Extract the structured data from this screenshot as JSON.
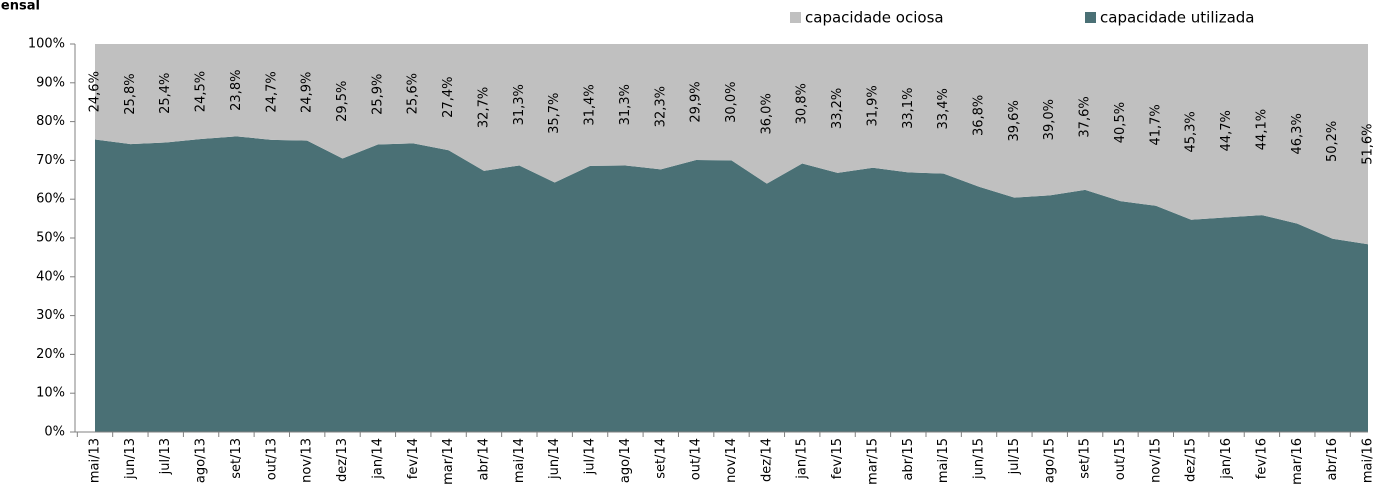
{
  "chart_data": {
    "type": "stacked_area",
    "title": "Mensal",
    "categories": [
      "mai/13",
      "jun/13",
      "jul/13",
      "ago/13",
      "set/13",
      "out/13",
      "nov/13",
      "dez/13",
      "jan/14",
      "fev/14",
      "mar/14",
      "abr/14",
      "mai/14",
      "jun/14",
      "jul/14",
      "ago/14",
      "set/14",
      "out/14",
      "nov/14",
      "dez/14",
      "jan/15",
      "fev/15",
      "mar/15",
      "abr/15",
      "mai/15",
      "jun/15",
      "jul/15",
      "ago/15",
      "set/15",
      "out/15",
      "nov/15",
      "dez/15",
      "jan/16",
      "fev/16",
      "mar/16",
      "abr/16",
      "mai/16"
    ],
    "series": [
      {
        "name": "capacidade utilizada",
        "color": "#4a7075",
        "values": [
          75.4,
          74.2,
          74.6,
          75.5,
          76.2,
          75.3,
          75.1,
          70.5,
          74.1,
          74.4,
          72.6,
          67.3,
          68.7,
          64.3,
          68.6,
          68.7,
          67.7,
          70.1,
          70.0,
          64.0,
          69.2,
          66.8,
          68.1,
          66.9,
          66.6,
          63.2,
          60.4,
          61.0,
          62.4,
          59.5,
          58.3,
          54.7,
          55.3,
          55.9,
          53.7,
          49.8,
          48.4
        ]
      },
      {
        "name": "capacidade ociosa",
        "color": "#c0c0c0",
        "values": [
          24.6,
          25.8,
          25.4,
          24.5,
          23.8,
          24.7,
          24.9,
          29.5,
          25.9,
          25.6,
          27.4,
          32.7,
          31.3,
          35.7,
          31.4,
          31.3,
          32.3,
          29.9,
          30.0,
          36.0,
          30.8,
          33.2,
          31.9,
          33.1,
          33.4,
          36.8,
          39.6,
          39.0,
          37.6,
          40.5,
          41.7,
          45.3,
          44.7,
          44.1,
          46.3,
          50.2,
          51.6
        ],
        "value_labels": [
          "24,6%",
          "25,8%",
          "25,4%",
          "24,5%",
          "23,8%",
          "24,7%",
          "24,9%",
          "29,5%",
          "25,9%",
          "25,6%",
          "27,4%",
          "32,7%",
          "31,3%",
          "35,7%",
          "31,4%",
          "31,3%",
          "32,3%",
          "29,9%",
          "30,0%",
          "36,0%",
          "30,8%",
          "33,2%",
          "31,9%",
          "33,1%",
          "33,4%",
          "36,8%",
          "39,6%",
          "39,0%",
          "37,6%",
          "40,5%",
          "41,7%",
          "45,3%",
          "44,7%",
          "44,1%",
          "46,3%",
          "50,2%",
          "51,6%"
        ]
      }
    ],
    "ylim": [
      0,
      100
    ],
    "yticks": [
      {
        "value": 0,
        "label": "0%"
      },
      {
        "value": 10,
        "label": "10%"
      },
      {
        "value": 20,
        "label": "20%"
      },
      {
        "value": 30,
        "label": "30%"
      },
      {
        "value": 40,
        "label": "40%"
      },
      {
        "value": 50,
        "label": "50%"
      },
      {
        "value": 60,
        "label": "60%"
      },
      {
        "value": 70,
        "label": "70%"
      },
      {
        "value": 80,
        "label": "80%"
      },
      {
        "value": 90,
        "label": "90%"
      },
      {
        "value": 100,
        "label": "100%"
      }
    ]
  }
}
